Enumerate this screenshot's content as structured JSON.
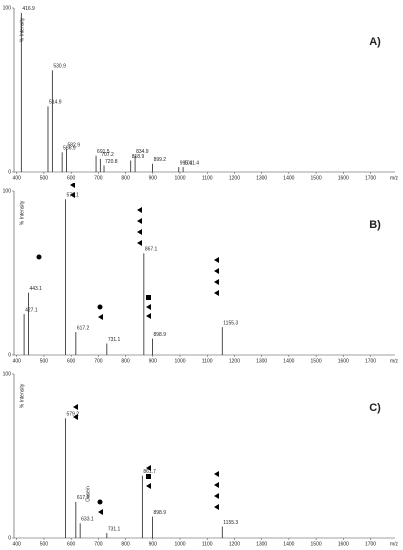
{
  "chart_data": [
    {
      "type": "bar",
      "panel_label": "A)",
      "y_label": "% Intensity",
      "x_label": "m/z",
      "x": [
        416.9,
        514.9,
        530.9,
        566.9,
        582.9,
        691.5,
        707.2,
        720.8,
        818.9,
        834.9,
        899.2,
        995.4,
        1011.4
      ],
      "values": [
        97,
        40,
        62,
        12,
        14,
        10,
        8,
        4,
        7,
        10,
        5,
        3,
        3
      ],
      "xlim": [
        390,
        1790
      ],
      "ylim": [
        0,
        100
      ],
      "xticks": [
        400,
        500,
        600,
        700,
        800,
        900,
        1000,
        1100,
        1200,
        1300,
        1400,
        1500,
        1600,
        1700
      ],
      "yticks": [
        0,
        100
      ],
      "color": "#222222"
    },
    {
      "type": "bar",
      "panel_label": "B)",
      "y_label": "% Intensity",
      "x_label": "m/z",
      "x": [
        427.1,
        443.1,
        579.1,
        617.2,
        731.1,
        867.1,
        898.9,
        1155.3
      ],
      "values": [
        25,
        38,
        95,
        14,
        7,
        62,
        10,
        17
      ],
      "xlim": [
        390,
        1790
      ],
      "ylim": [
        0,
        100
      ],
      "xticks": [
        400,
        500,
        600,
        700,
        800,
        900,
        1000,
        1100,
        1200,
        1300,
        1400,
        1500,
        1600,
        1700
      ],
      "yticks": [
        0,
        100
      ],
      "color": "#222222"
    },
    {
      "type": "bar",
      "panel_label": "C)",
      "y_label": "% Intensity",
      "x_label": "m/z",
      "annotation": "Casein",
      "x": [
        579.2,
        617.2,
        633.1,
        731.1,
        861.7,
        898.9,
        1155.3
      ],
      "values": [
        73,
        22,
        9,
        3,
        38,
        13,
        7
      ],
      "xlim": [
        390,
        1790
      ],
      "ylim": [
        0,
        100
      ],
      "xticks": [
        400,
        500,
        600,
        700,
        800,
        900,
        1000,
        1100,
        1200,
        1300,
        1400,
        1500,
        1600,
        1700
      ],
      "yticks": [
        0,
        100
      ],
      "color": "#222222"
    }
  ]
}
